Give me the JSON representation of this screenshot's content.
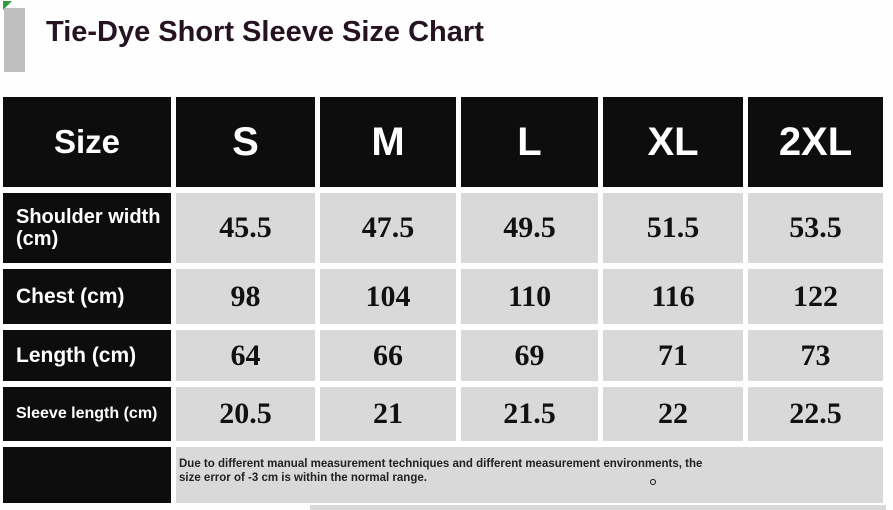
{
  "title": "Tie-Dye Short Sleeve Size Chart",
  "colors": {
    "header_bg": "#0e0d0d",
    "cell_bg": "#d9d9d9",
    "title_text": "#251322",
    "header_text": "#ffffff",
    "value_text": "#111111",
    "note_text": "#222222",
    "corner_accent_green": "#2f9e3f",
    "title_bar_gray": "#bfbfbf"
  },
  "table": {
    "corner_label": "Size",
    "size_headers": [
      "S",
      "M",
      "L",
      "XL",
      "2XL"
    ],
    "rows": [
      {
        "label": "Shoulder width (cm)",
        "values": [
          "45.5",
          "47.5",
          "49.5",
          "51.5",
          "53.5"
        ]
      },
      {
        "label": "Chest (cm)",
        "values": [
          "98",
          "104",
          "110",
          "116",
          "122"
        ]
      },
      {
        "label": "Length (cm)",
        "values": [
          "64",
          "66",
          "69",
          "71",
          "73"
        ]
      },
      {
        "label": "Sleeve length (cm)",
        "values": [
          "20.5",
          "21",
          "21.5",
          "22",
          "22.5"
        ]
      }
    ],
    "note_line1": "Due to different manual measurement techniques and different measurement environments, the",
    "note_line2": "size error of -3 cm is within the normal range."
  },
  "chart_data": {
    "type": "table",
    "title": "Tie-Dye Short Sleeve Size Chart",
    "columns": [
      "Size",
      "S",
      "M",
      "L",
      "XL",
      "2XL"
    ],
    "rows": [
      [
        "Shoulder width (cm)",
        45.5,
        47.5,
        49.5,
        51.5,
        53.5
      ],
      [
        "Chest (cm)",
        98,
        104,
        110,
        116,
        122
      ],
      [
        "Length (cm)",
        64,
        66,
        69,
        71,
        73
      ],
      [
        "Sleeve length (cm)",
        20.5,
        21,
        21.5,
        22,
        22.5
      ]
    ],
    "note": "Due to different manual measurement techniques and different measurement environments, the size error of -3 cm is within the normal range."
  }
}
